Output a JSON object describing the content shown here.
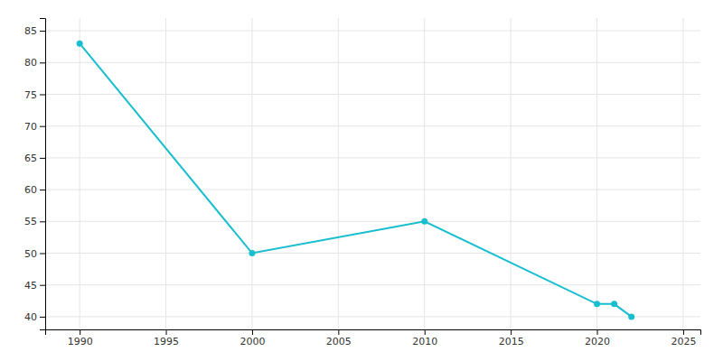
{
  "chart_data": {
    "type": "line",
    "x": [
      1990,
      2000,
      2010,
      2020,
      2021,
      2022
    ],
    "values": [
      83,
      50,
      55,
      42,
      42,
      40
    ],
    "color": "#17becf",
    "marker": "circle",
    "xlim": [
      1988,
      2026
    ],
    "ylim": [
      38,
      87
    ],
    "xticks": [
      1990,
      1995,
      2000,
      2005,
      2010,
      2015,
      2020,
      2025
    ],
    "yticks": [
      40,
      45,
      50,
      55,
      60,
      65,
      70,
      75,
      80,
      85
    ],
    "grid": true
  }
}
